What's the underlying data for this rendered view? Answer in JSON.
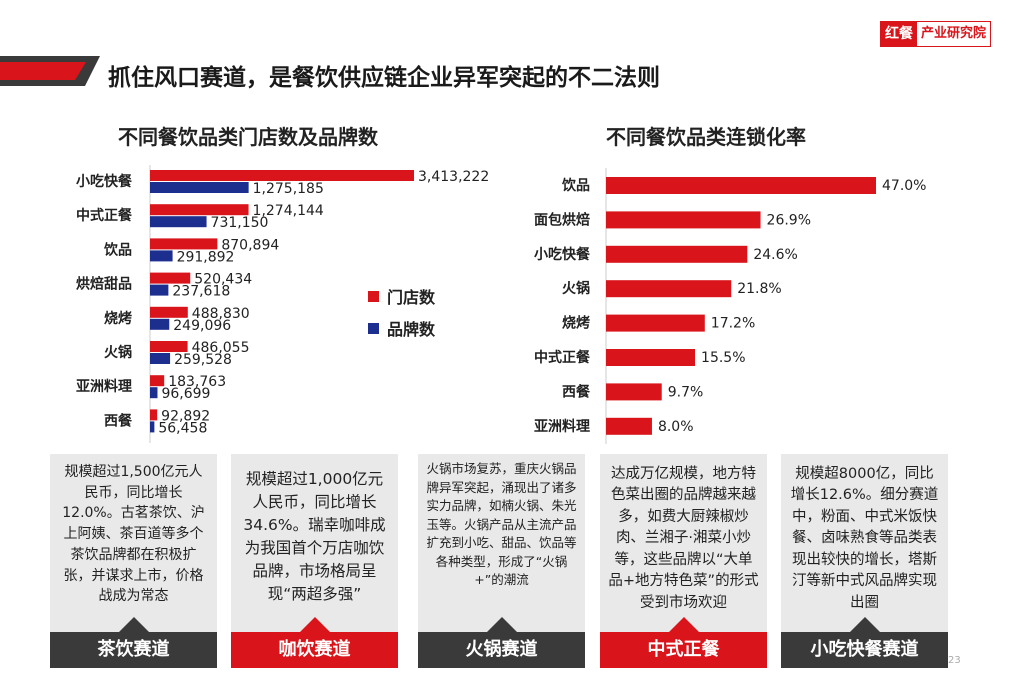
{
  "page": {
    "title": "抓住风口赛道，是餐饮供应链企业异军突起的不二法则",
    "logo_brand": "红餐",
    "logo_org": "产业研究院",
    "page_number": "23"
  },
  "colors": {
    "red": "#d9151b",
    "blue": "#1c2f8f",
    "dark": "#3a3a3a"
  },
  "chart_data": [
    {
      "type": "bar",
      "orientation": "horizontal",
      "title": "不同餐饮品类门店数及品牌数",
      "categories": [
        "小吃快餐",
        "中式正餐",
        "饮品",
        "烘焙甜品",
        "烧烤",
        "火锅",
        "亚洲料理",
        "西餐"
      ],
      "series": [
        {
          "name": "门店数",
          "color": "#d9151b",
          "values": [
            3413222,
            1274144,
            870894,
            520434,
            488830,
            486055,
            183763,
            92892
          ],
          "labels": [
            "3,413,222",
            "1,274,144",
            "870,894",
            "520,434",
            "488,830",
            "486,055",
            "183,763",
            "92,892"
          ]
        },
        {
          "name": "品牌数",
          "color": "#1c2f8f",
          "values": [
            1275185,
            731150,
            291892,
            237618,
            249096,
            259528,
            96699,
            56458
          ],
          "labels": [
            "1,275,185",
            "731,150",
            "291,892",
            "237,618",
            "249,096",
            "259,528",
            "96,699",
            "56,458"
          ]
        }
      ],
      "legend": [
        "门店数",
        "品牌数"
      ],
      "xlim": [
        0,
        3413222
      ]
    },
    {
      "type": "bar",
      "orientation": "horizontal",
      "title": "不同餐饮品类连锁化率",
      "categories": [
        "饮品",
        "面包烘焙",
        "小吃快餐",
        "火锅",
        "烧烤",
        "中式正餐",
        "西餐",
        "亚洲料理"
      ],
      "values": [
        47.0,
        26.9,
        24.6,
        21.8,
        17.2,
        15.5,
        9.7,
        8.0
      ],
      "labels": [
        "47.0%",
        "26.9%",
        "24.6%",
        "21.8%",
        "17.2%",
        "15.5%",
        "9.7%",
        "8.0%"
      ],
      "xlim": [
        0,
        47.0
      ]
    }
  ],
  "cards": [
    {
      "text": "规模超过1,500亿元人民币，同比增长12.0%。古茗茶饮、沪上阿姨、茶百道等多个茶饮品牌都在积极扩张，并谋求上市，价格战成为常态",
      "tab": "茶饮赛道"
    },
    {
      "text": "规模超过1,000亿元人民币，同比增长34.6%。瑞幸咖啡成为我国首个万店咖饮品牌，市场格局呈现“两超多强”",
      "tab": "咖饮赛道"
    },
    {
      "text": "火锅市场复苏，重庆火锅品牌异军突起，涌现出了诸多实力品牌，如楠火锅、朱光玉等。火锅产品从主流产品扩充到小吃、甜品、饮品等各种类型，形成了“火锅+”的潮流",
      "tab": "火锅赛道"
    },
    {
      "text": "达成万亿规模，地方特色菜出圈的品牌越来越多，如费大厨辣椒炒肉、兰湘子·湘菜小炒等，这些品牌以“大单品+地方特色菜”的形式受到市场欢迎",
      "tab": "中式正餐"
    },
    {
      "text": "规模超8000亿，同比增长12.6%。细分赛道中，粉面、中式米饭快餐、卤味熟食等品类表现出较快的增长，塔斯汀等新中式风品牌实现出圈",
      "tab": "小吃快餐赛道"
    }
  ]
}
